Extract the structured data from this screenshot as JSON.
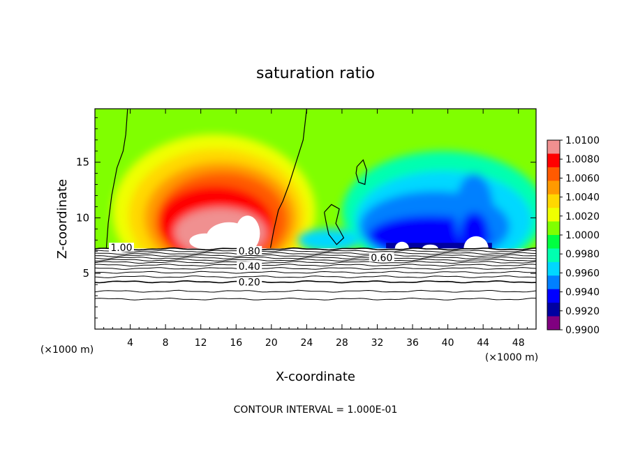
{
  "chart_data": {
    "type": "heatmap",
    "title": "saturation ratio",
    "xlabel": "X-coordinate",
    "ylabel": "Z-coordinate",
    "x_unit_left": "(×1000 m)",
    "x_unit_right": "(×1000 m)",
    "footer": "CONTOUR INTERVAL = 1.000E-01",
    "xlim": [
      0,
      50
    ],
    "ylim": [
      0,
      19.8
    ],
    "x_ticks": [
      4,
      8,
      12,
      16,
      20,
      24,
      28,
      32,
      36,
      40,
      44,
      48
    ],
    "y_ticks": [
      5,
      10,
      15
    ],
    "colorbar": {
      "levels": [
        "1.0100",
        "1.0080",
        "1.0060",
        "1.0040",
        "1.0020",
        "1.0000",
        "0.9980",
        "0.9960",
        "0.9940",
        "0.9920",
        "0.9900"
      ],
      "colors": [
        "#ffffff",
        "#f09090",
        "#ff0000",
        "#ff5a00",
        "#ff9a00",
        "#ffd800",
        "#f0ff00",
        "#80ff00",
        "#00ff40",
        "#00ffb0",
        "#00d8ff",
        "#0080ff",
        "#0000ff",
        "#0000a0",
        "#800080"
      ]
    },
    "contour_labels": [
      {
        "text": "1.00",
        "x": 3,
        "z": 7.2
      },
      {
        "text": "0.80",
        "x": 17.5,
        "z": 6.9
      },
      {
        "text": "0.40",
        "x": 17.5,
        "z": 5.5
      },
      {
        "text": "0.20",
        "x": 17.5,
        "z": 4.1
      },
      {
        "text": "0.60",
        "x": 32.5,
        "z": 6.3
      }
    ]
  }
}
